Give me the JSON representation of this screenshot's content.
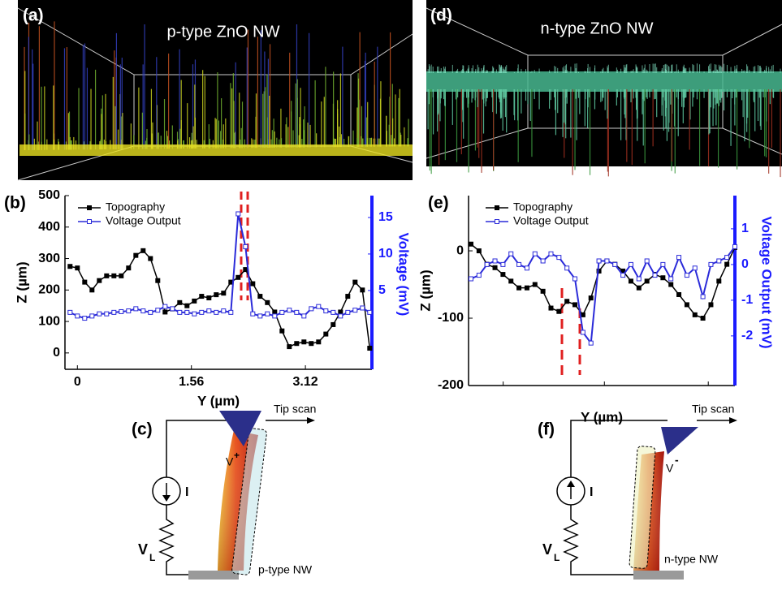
{
  "panels": {
    "a": {
      "label": "(a)",
      "title": "p-type ZnO NW"
    },
    "d": {
      "label": "(d)",
      "title": "n-type ZnO NW"
    },
    "c": {
      "label": "(c)",
      "tip_label": "Tip scan",
      "current": "I",
      "tip_voltage": "V",
      "tip_sign": "+",
      "load": "V",
      "load_sub": "L",
      "nanowire": "p-type NW"
    },
    "f": {
      "label": "(f)",
      "tip_label": "Tip scan",
      "current": "I",
      "tip_voltage": "V",
      "tip_sign": "-",
      "load": "V",
      "load_sub": "L",
      "nanowire": "n-type NW"
    }
  },
  "chart_data": [
    {
      "type": "line",
      "label": "(b)",
      "x_label": "Y (µm)",
      "y_label": "Z (µm)",
      "y2_label": "Voltage (mV)",
      "x": [
        -0.1,
        0,
        0.1,
        0.2,
        0.3,
        0.4,
        0.5,
        0.6,
        0.7,
        0.8,
        0.9,
        1.0,
        1.1,
        1.2,
        1.3,
        1.4,
        1.5,
        1.6,
        1.7,
        1.8,
        1.9,
        2.0,
        2.1,
        2.2,
        2.3,
        2.4,
        2.5,
        2.6,
        2.7,
        2.8,
        2.9,
        3.0,
        3.1,
        3.2,
        3.3,
        3.4,
        3.5,
        3.6,
        3.7,
        3.8,
        3.9,
        4.0
      ],
      "xlim": [
        -0.17,
        4.03
      ],
      "xticks": [
        0,
        1.56,
        3.12
      ],
      "ylim": [
        -52,
        500
      ],
      "yticks": [
        0,
        100,
        200,
        300,
        400,
        500
      ],
      "y2lim": [
        -5.8,
        18
      ],
      "y2ticks": [
        5,
        10,
        15
      ],
      "y2_color": "#1a1aff",
      "series": [
        {
          "name": "Topography",
          "color": "#000000",
          "values": [
            275,
            270,
            225,
            200,
            230,
            245,
            245,
            245,
            270,
            310,
            325,
            300,
            230,
            130,
            140,
            160,
            150,
            165,
            180,
            175,
            185,
            190,
            225,
            240,
            265,
            220,
            180,
            160,
            130,
            70,
            20,
            30,
            35,
            30,
            35,
            60,
            90,
            130,
            180,
            225,
            200,
            15
          ]
        },
        {
          "name": "Voltage Output",
          "color": "#2b2bd9",
          "axis": "y2",
          "values": [
            2,
            1.5,
            1.2,
            1.5,
            1.8,
            1.8,
            2,
            2.1,
            2.2,
            2.5,
            2.2,
            2,
            2.3,
            2.8,
            2.5,
            2,
            2,
            1.8,
            2,
            2.2,
            2,
            2.2,
            2.0,
            15.5,
            11,
            1.8,
            1.5,
            1.8,
            1.5,
            2,
            2.3,
            2,
            1.5,
            2.5,
            2.8,
            2.2,
            2,
            1.5,
            2,
            2.3,
            2.6,
            2
          ]
        }
      ]
    },
    {
      "type": "line",
      "label": "(e)",
      "x_label": "Y (µm)",
      "y_label": "Z (µm)",
      "y2_label": "Voltage Output (mV)",
      "ylim": [
        -200,
        82
      ],
      "yticks": [
        -200,
        -100,
        0
      ],
      "y2lim": [
        -3.39,
        1.93
      ],
      "y2ticks": [
        -2,
        -1,
        0,
        1
      ],
      "y2_color": "#1a1aff",
      "series": [
        {
          "name": "Topography",
          "color": "#000000",
          "values": [
            10,
            0,
            -20,
            -25,
            -35,
            -45,
            -55,
            -55,
            -50,
            -60,
            -85,
            -90,
            -75,
            -80,
            -95,
            -70,
            -30,
            -15,
            -20,
            -30,
            -45,
            -55,
            -45,
            -35,
            -40,
            -50,
            -65,
            -80,
            -95,
            -100,
            -80,
            -45,
            -20,
            5
          ]
        },
        {
          "name": "Voltage Output",
          "color": "#2b2bd9",
          "axis": "y2",
          "values": [
            -0.4,
            -0.3,
            0,
            0.1,
            0,
            0.3,
            0,
            -0.1,
            0.3,
            0.1,
            0.3,
            0.2,
            -0.1,
            -0.4,
            -1.9,
            -2.2,
            0.1,
            0.1,
            0,
            -0.3,
            0,
            -0.4,
            0.1,
            -0.3,
            0,
            -0.4,
            0.2,
            -0.3,
            -0.1,
            -0.9,
            0,
            0.1,
            0.2,
            0.5
          ]
        }
      ]
    }
  ]
}
